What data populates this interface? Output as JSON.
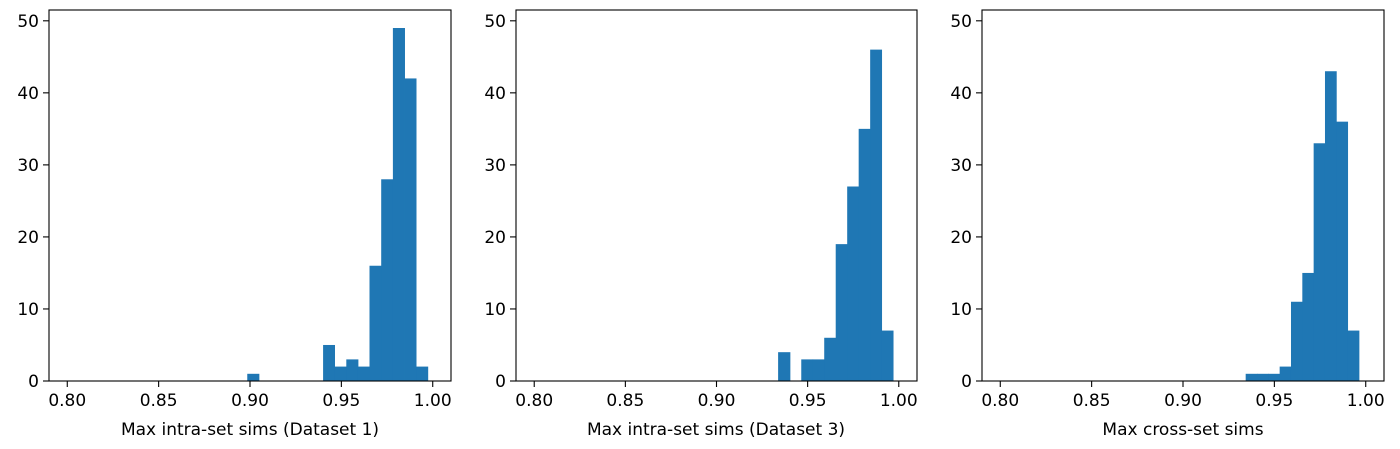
{
  "chart_data": [
    {
      "type": "bar",
      "xlabel": "Max intra-set sims (Dataset 1)",
      "ylabel": "",
      "xlim": [
        0.79,
        1.01
      ],
      "ylim": [
        0,
        51.5
      ],
      "xticks": [
        "0.80",
        "0.85",
        "0.90",
        "0.95",
        "1.00"
      ],
      "yticks": [
        "0",
        "10",
        "20",
        "30",
        "40",
        "50"
      ],
      "color": "#1f77b4",
      "bins": [
        {
          "x0": 0.8985,
          "x1": 0.9049,
          "count": 1
        },
        {
          "x0": 0.94,
          "x1": 0.9463,
          "count": 5
        },
        {
          "x0": 0.9463,
          "x1": 0.9527,
          "count": 2
        },
        {
          "x0": 0.9527,
          "x1": 0.9591,
          "count": 3
        },
        {
          "x0": 0.9591,
          "x1": 0.9654,
          "count": 2
        },
        {
          "x0": 0.9654,
          "x1": 0.9718,
          "count": 16
        },
        {
          "x0": 0.9718,
          "x1": 0.9782,
          "count": 28
        },
        {
          "x0": 0.9782,
          "x1": 0.9846,
          "count": 49
        },
        {
          "x0": 0.9846,
          "x1": 0.9909,
          "count": 42
        },
        {
          "x0": 0.9909,
          "x1": 0.9973,
          "count": 2
        }
      ]
    },
    {
      "type": "bar",
      "xlabel": "Max intra-set sims (Dataset 3)",
      "ylabel": "",
      "xlim": [
        0.79,
        1.01
      ],
      "ylim": [
        0,
        51.5
      ],
      "xticks": [
        "0.80",
        "0.85",
        "0.90",
        "0.95",
        "1.00"
      ],
      "yticks": [
        "0",
        "10",
        "20",
        "30",
        "40",
        "50"
      ],
      "color": "#1f77b4",
      "bins": [
        {
          "x0": 0.9338,
          "x1": 0.9403,
          "count": 4
        },
        {
          "x0": 0.9465,
          "x1": 0.9528,
          "count": 3
        },
        {
          "x0": 0.9528,
          "x1": 0.9591,
          "count": 3
        },
        {
          "x0": 0.9591,
          "x1": 0.9654,
          "count": 6
        },
        {
          "x0": 0.9654,
          "x1": 0.9717,
          "count": 19
        },
        {
          "x0": 0.9717,
          "x1": 0.978,
          "count": 27
        },
        {
          "x0": 0.978,
          "x1": 0.9843,
          "count": 35
        },
        {
          "x0": 0.9843,
          "x1": 0.9906,
          "count": 46
        },
        {
          "x0": 0.9906,
          "x1": 0.9969,
          "count": 7
        }
      ]
    },
    {
      "type": "bar",
      "xlabel": "Max cross-set sims",
      "ylabel": "",
      "xlim": [
        0.79,
        1.01
      ],
      "ylim": [
        0,
        51.5
      ],
      "xticks": [
        "0.80",
        "0.85",
        "0.90",
        "0.95",
        "1.00"
      ],
      "yticks": [
        "0",
        "10",
        "20",
        "30",
        "40",
        "50"
      ],
      "color": "#1f77b4",
      "bins": [
        {
          "x0": 0.9343,
          "x1": 0.9405,
          "count": 1
        },
        {
          "x0": 0.9405,
          "x1": 0.9467,
          "count": 1
        },
        {
          "x0": 0.9467,
          "x1": 0.9529,
          "count": 1
        },
        {
          "x0": 0.9529,
          "x1": 0.9591,
          "count": 2
        },
        {
          "x0": 0.9591,
          "x1": 0.9653,
          "count": 11
        },
        {
          "x0": 0.9653,
          "x1": 0.9715,
          "count": 15
        },
        {
          "x0": 0.9715,
          "x1": 0.9777,
          "count": 33
        },
        {
          "x0": 0.9777,
          "x1": 0.9839,
          "count": 43
        },
        {
          "x0": 0.9839,
          "x1": 0.9901,
          "count": 36
        },
        {
          "x0": 0.9901,
          "x1": 0.9963,
          "count": 7
        }
      ]
    }
  ]
}
